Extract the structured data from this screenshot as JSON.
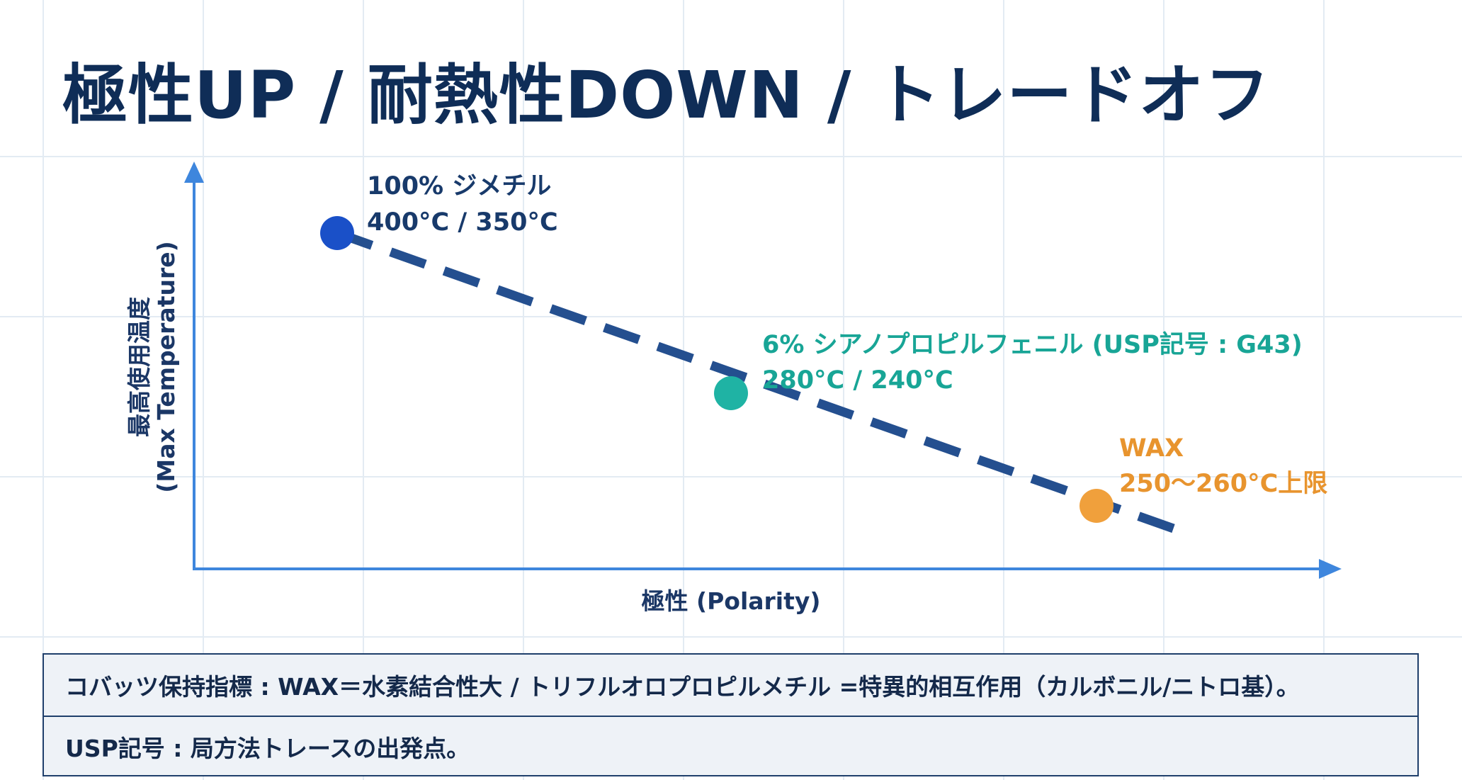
{
  "title": "極性UP / 耐熱性DOWN / トレードオフ",
  "diagram": {
    "y_axis_label_line1": "最高使用温度",
    "y_axis_label_line2": "(Max Temperature)",
    "x_axis_label": "極性 (Polarity)",
    "trend": "dashed line: maximum temperature decreases as polarity increases",
    "points": [
      {
        "name_line": "100% ジメチル",
        "temp_line": "400°C / 350°C",
        "color": "#1a50c8"
      },
      {
        "name_line": "6% シアノプロピルフェニル (USP記号 : G43)",
        "temp_line": "280°C / 240°C",
        "color": "#1fb3a4"
      },
      {
        "name_line": "WAX",
        "temp_line": "250〜260°C上限",
        "color": "#f0a03c"
      }
    ],
    "colors": {
      "axis": "#3e86dd",
      "trend_line": "#244f8f",
      "title": "#0f2d57"
    }
  },
  "notes": [
    "コバッツ保持指標 : WAX＝水素結合性大 / トリフルオロプロピルメチル =特異的相互作用（カルボニル/ニトロ基）。",
    "USP記号 : 局方法トレースの出発点。"
  ]
}
